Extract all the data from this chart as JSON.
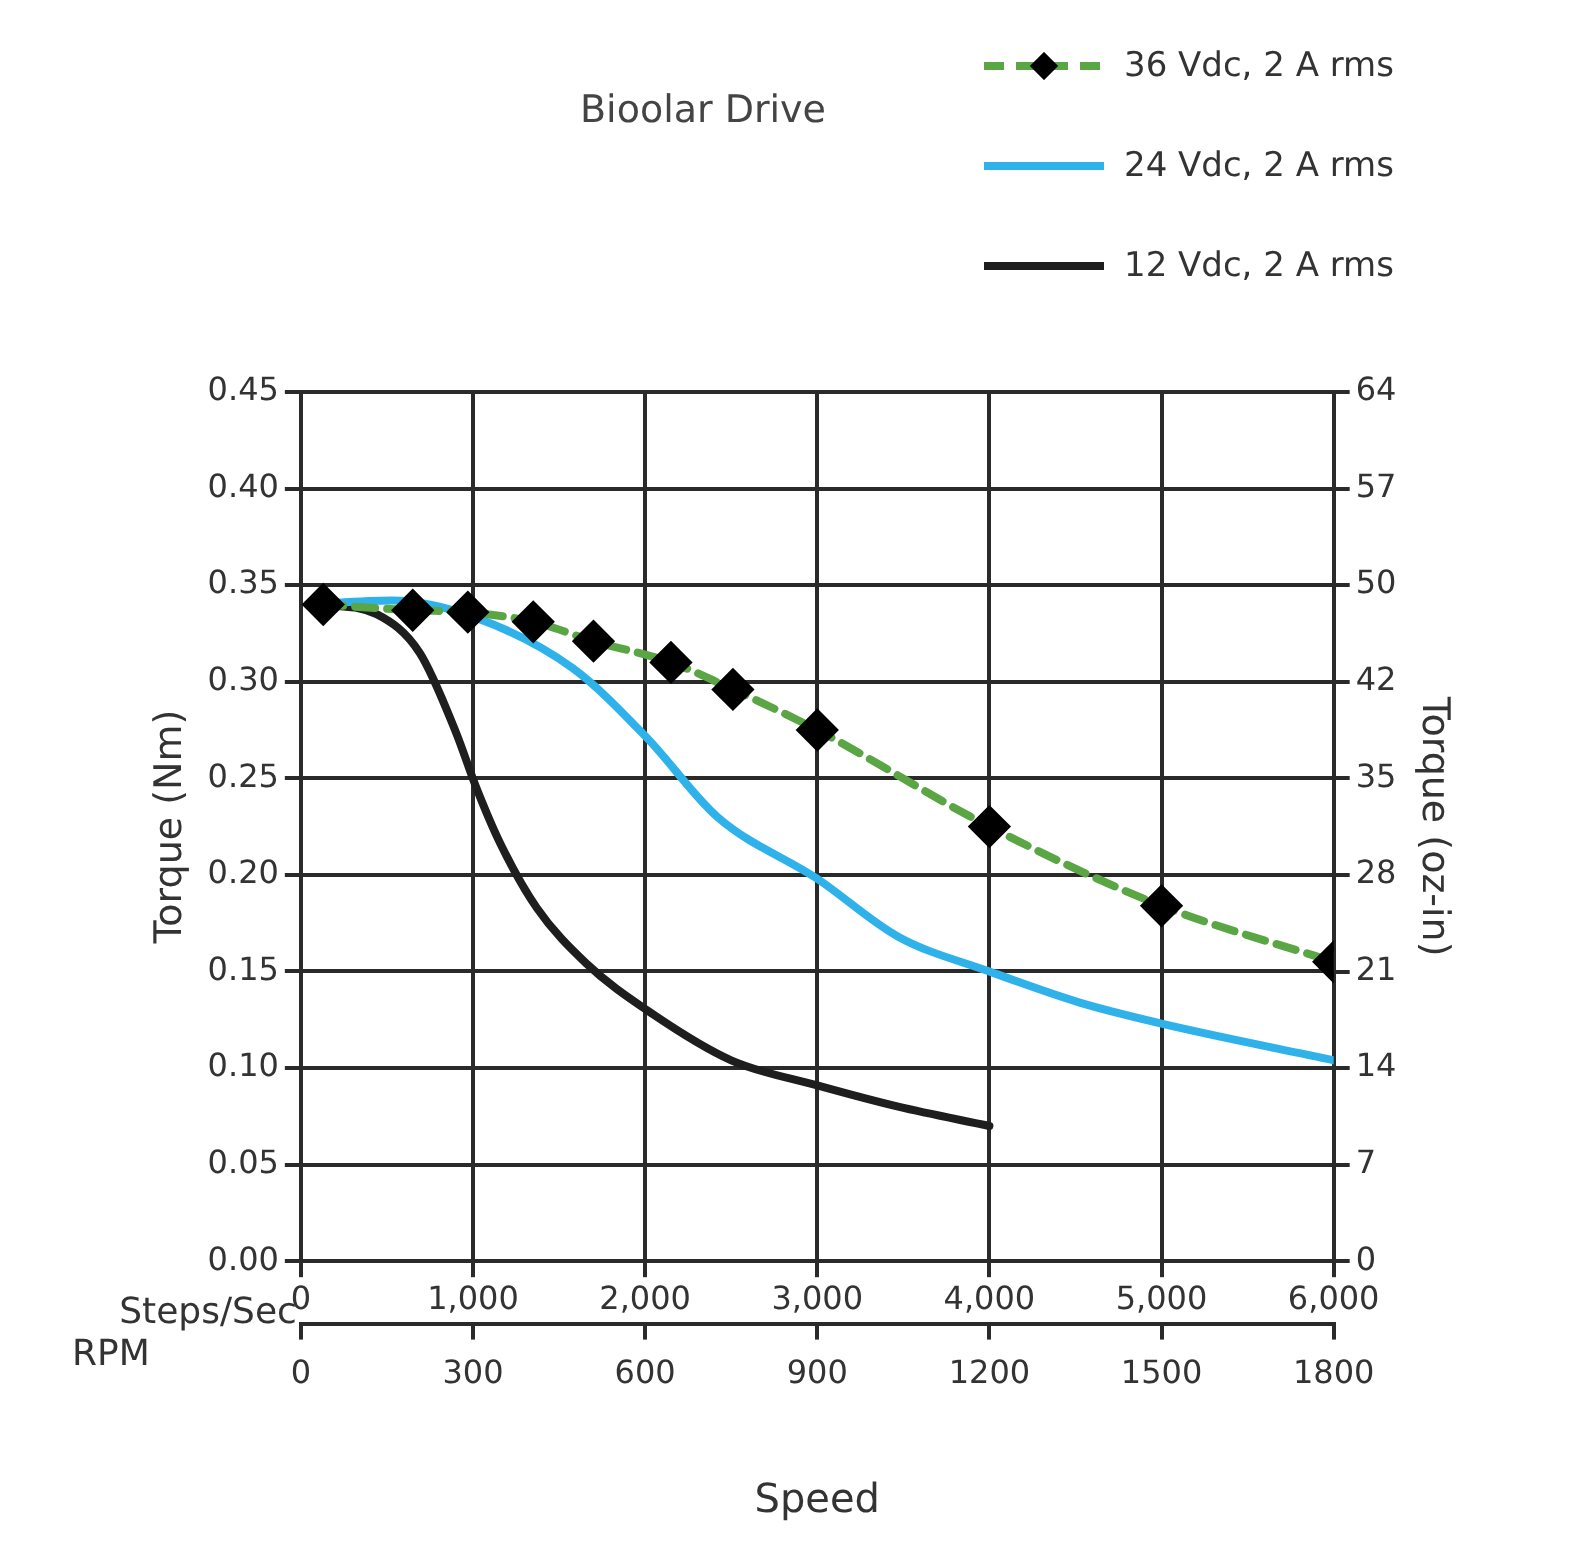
{
  "chart_data": {
    "type": "line",
    "title": "Bioolar Drive",
    "xlabel": "Steps/Sec",
    "x2label": "RPM",
    "ylabel": "Torque (Nm)",
    "y2label": "Torque (oz-in)",
    "annotations": [
      "Speed"
    ],
    "xlim": [
      0,
      6000
    ],
    "xticks": [
      0,
      {
        "value": 1000,
        "label": "1,000"
      },
      {
        "value": 2000,
        "label": "2,000"
      },
      {
        "value": 3000,
        "label": "3,000"
      },
      {
        "value": 4000,
        "label": "4,000"
      },
      {
        "value": 5000,
        "label": "5,000"
      },
      {
        "value": 6000,
        "label": "6,000"
      }
    ],
    "x2lim": [
      0,
      1800
    ],
    "x2ticks": [
      0,
      300,
      600,
      900,
      1200,
      1500,
      1800
    ],
    "ylim": [
      0,
      0.45
    ],
    "yticks": [
      {
        "value": 0,
        "label": "0.00"
      },
      0.05,
      {
        "value": 0.1,
        "label": "0.10"
      },
      0.15,
      {
        "value": 0.2,
        "label": "0.20"
      },
      0.25,
      {
        "value": 0.3,
        "label": "0.30"
      },
      0.35,
      {
        "value": 0.4,
        "label": "0.40"
      },
      0.45
    ],
    "y2lim": [
      0,
      63.73
    ],
    "y2ticks": [
      0,
      {
        "value": 7.08,
        "label": "7"
      },
      {
        "value": 14.16,
        "label": "14"
      },
      {
        "value": 21.24,
        "label": "21"
      },
      {
        "value": 28.32,
        "label": "28"
      },
      {
        "value": 35.4,
        "label": "35"
      },
      {
        "value": 42.49,
        "label": "42"
      },
      {
        "value": 49.57,
        "label": "50"
      },
      {
        "value": 56.65,
        "label": "57"
      },
      {
        "value": 63.73,
        "label": "64"
      }
    ],
    "grid": true,
    "legend": "top right",
    "series": [
      {
        "name": "36 Vdc, 2 A rms",
        "color": "#5aa645",
        "marker": "diamond",
        "line_style": "dashed",
        "x": [
          130,
          650,
          970,
          1350,
          1700,
          2150,
          2510,
          3000,
          4000,
          5000,
          6000
        ],
        "values": [
          0.34,
          0.337,
          0.336,
          0.331,
          0.321,
          0.31,
          0.296,
          0.275,
          0.225,
          0.184,
          0.155
        ]
      },
      {
        "name": "24 Vdc, 2 A rms",
        "color": "#2fb2ea",
        "marker": "none",
        "line_style": "solid",
        "x": [
          40,
          530,
          1020,
          1580,
          2010,
          2420,
          3000,
          3470,
          4000,
          4520,
          5000,
          6000
        ],
        "values": [
          0.34,
          0.342,
          0.333,
          0.307,
          0.271,
          0.23,
          0.198,
          0.168,
          0.15,
          0.134,
          0.123,
          0.104
        ]
      },
      {
        "name": "12 Vdc, 2 A rms",
        "color": "#1e1e1e",
        "marker": "none",
        "line_style": "solid",
        "x": [
          130,
          440,
          690,
          900,
          1020,
          1160,
          1370,
          1660,
          2010,
          2500,
          3000,
          3470,
          4000
        ],
        "values": [
          0.34,
          0.335,
          0.315,
          0.274,
          0.245,
          0.216,
          0.183,
          0.154,
          0.13,
          0.104,
          0.091,
          0.08,
          0.07
        ]
      }
    ]
  }
}
